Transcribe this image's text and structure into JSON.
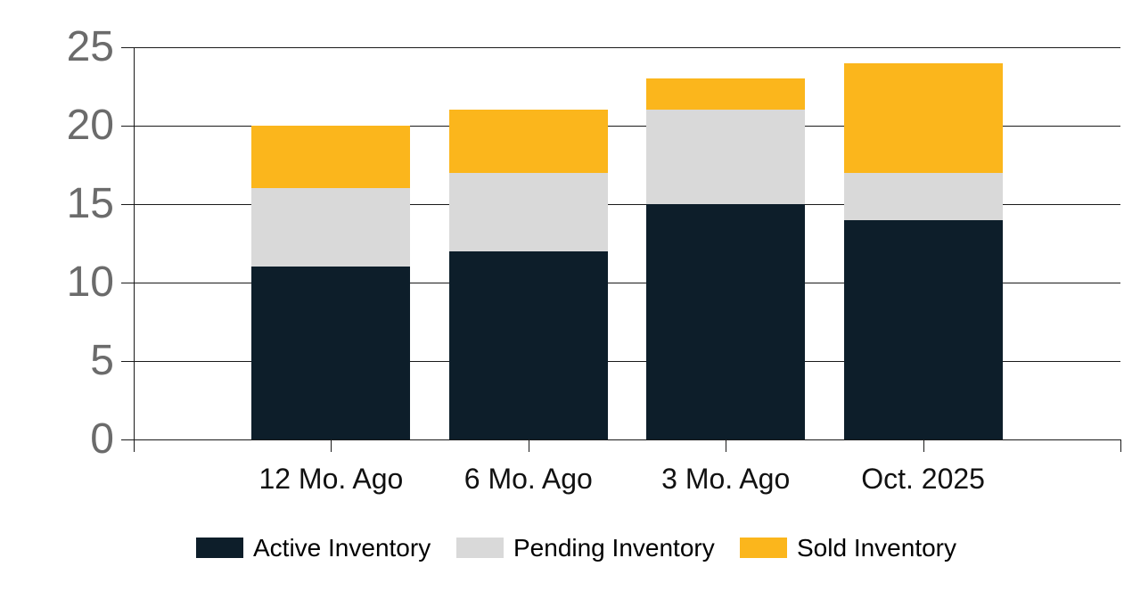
{
  "chart_data": {
    "type": "bar",
    "stacked": true,
    "title": "",
    "xlabel": "",
    "ylabel": "",
    "categories": [
      "12 Mo. Ago",
      "6 Mo. Ago",
      "3 Mo. Ago",
      "Oct. 2025"
    ],
    "series": [
      {
        "name": "Active Inventory",
        "color": "#0d1e2a",
        "values": [
          11,
          12,
          15,
          14
        ]
      },
      {
        "name": "Pending Inventory",
        "color": "#d9d9d9",
        "values": [
          5,
          5,
          6,
          3
        ]
      },
      {
        "name": "Sold Inventory",
        "color": "#fbb61c",
        "values": [
          4,
          4,
          2,
          7
        ]
      }
    ],
    "stack_totals": [
      20,
      21,
      23,
      24
    ],
    "ylim": [
      0,
      25
    ],
    "yticks": [
      0,
      5,
      10,
      15,
      20,
      25
    ],
    "grid": true,
    "legend_position": "bottom"
  },
  "colors": {
    "axis": "#1a1a1a",
    "gridline": "#1a1a1a",
    "y_tick_label": "#6b6b6b",
    "x_tick_label": "#111111",
    "legend_text": "#000000",
    "background": "#ffffff"
  }
}
